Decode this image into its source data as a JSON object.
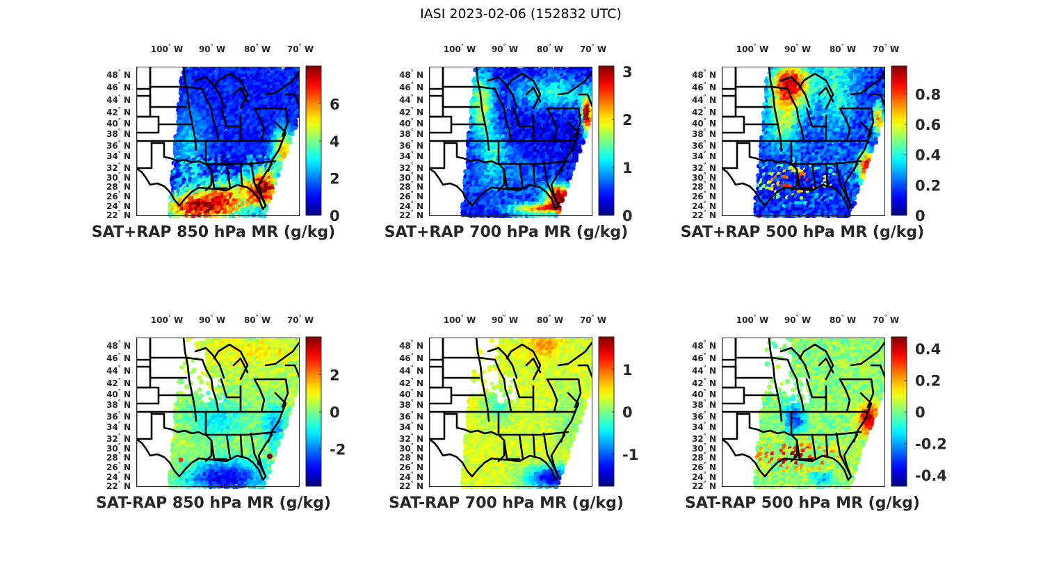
{
  "figure": {
    "title": "IASI 2023-02-06 (152832 UTC)"
  },
  "chart_data": [
    {
      "type": "heatmap",
      "title": "SAT+RAP 850 hPa MR (g/kg)",
      "field": "SAT+RAP",
      "pressure_hPa": 850,
      "colormap": "jet",
      "clim": [
        0,
        8
      ],
      "colorbar_ticks": [
        0,
        2,
        4,
        6
      ],
      "colorbar_tick_labels": [
        "0",
        "2",
        "4",
        "6"
      ],
      "lon_ticks": [
        "100° W",
        "90° W",
        "80° W",
        "70° W"
      ],
      "lat_ticks": [
        "48° N",
        "46° N",
        "44° N",
        "42° N",
        "40° N",
        "38° N",
        "36° N",
        "34° N",
        "32° N",
        "30° N",
        "28° N",
        "26° N",
        "24° N",
        "22° N"
      ],
      "pattern": "low (~1) over land and north, high (6–8) over Gulf of Mexico and Atlantic off Florida/Carolinas"
    },
    {
      "type": "heatmap",
      "title": "SAT+RAP 700 hPa MR (g/kg)",
      "field": "SAT+RAP",
      "pressure_hPa": 700,
      "colormap": "jet",
      "clim": [
        0,
        3.1
      ],
      "colorbar_ticks": [
        0,
        1,
        2,
        3
      ],
      "colorbar_tick_labels": [
        "0",
        "1",
        "2",
        "3"
      ],
      "lon_ticks": [
        "100° W",
        "90° W",
        "80° W",
        "70° W"
      ],
      "lat_ticks": [
        "48° N",
        "46° N",
        "44° N",
        "42° N",
        "40° N",
        "38° N",
        "36° N",
        "34° N",
        "32° N",
        "30° N",
        "28° N",
        "26° N",
        "24° N",
        "22° N"
      ],
      "pattern": "very low (~0.2) over interior, moderate (1.5–2) plains/northeast, high (3+) off SE Florida and mid-Atlantic coast strip"
    },
    {
      "type": "heatmap",
      "title": "SAT+RAP 500 hPa MR (g/kg)",
      "field": "SAT+RAP",
      "pressure_hPa": 500,
      "colormap": "jet",
      "clim": [
        0,
        0.98
      ],
      "colorbar_ticks": [
        0,
        0.2,
        0.4,
        0.6,
        0.8
      ],
      "colorbar_tick_labels": [
        "0",
        "0.2",
        "0.4",
        "0.6",
        "0.8"
      ],
      "lon_ticks": [
        "100° W",
        "90° W",
        "80° W",
        "70° W"
      ],
      "lat_ticks": [
        "48° N",
        "46° N",
        "44° N",
        "42° N",
        "40° N",
        "38° N",
        "36° N",
        "34° N",
        "32° N",
        "30° N",
        "28° N",
        "26° N",
        "24° N",
        "22° N"
      ],
      "pattern": "high (0.8–1) over upper Midwest/Minnesota and off Georgia coast, low (~0.1) over Ohio Valley and Southeast, streaks of high in Gulf"
    },
    {
      "type": "heatmap",
      "title": "SAT-RAP 850 hPa MR (g/kg)",
      "field": "SAT-RAP",
      "pressure_hPa": 850,
      "colormap": "jet",
      "clim": [
        -4,
        4
      ],
      "colorbar_ticks": [
        -2,
        0,
        2
      ],
      "colorbar_tick_labels": [
        "-2",
        "0",
        "2"
      ],
      "lon_ticks": [
        "100° W",
        "90° W",
        "80° W",
        "70° W"
      ],
      "lat_ticks": [
        "48° N",
        "46° N",
        "44° N",
        "42° N",
        "40° N",
        "38° N",
        "36° N",
        "34° N",
        "32° N",
        "30° N",
        "28° N",
        "26° N",
        "24° N",
        "22° N"
      ],
      "pattern": "near zero over most of the domain, strongly negative (-3 to -4) over Gulf of Mexico, isolated positive outliers near S Texas and off Florida"
    },
    {
      "type": "heatmap",
      "title": "SAT-RAP 700 hPa MR (g/kg)",
      "field": "SAT-RAP",
      "pressure_hPa": 700,
      "colormap": "jet",
      "clim": [
        -1.75,
        1.75
      ],
      "colorbar_ticks": [
        -1,
        0,
        1
      ],
      "colorbar_tick_labels": [
        "-1",
        "0",
        "1"
      ],
      "lon_ticks": [
        "100° W",
        "90° W",
        "80° W",
        "70° W"
      ],
      "lat_ticks": [
        "48° N",
        "46° N",
        "44° N",
        "42° N",
        "40° N",
        "38° N",
        "36° N",
        "34° N",
        "32° N",
        "30° N",
        "28° N",
        "26° N",
        "24° N",
        "22° N"
      ],
      "pattern": "near zero to slightly positive over most areas, positive (~1) over Lake Superior region, negative (-1.5) south of Florida"
    },
    {
      "type": "heatmap",
      "title": "SAT-RAP 500 hPa MR (g/kg)",
      "field": "SAT-RAP",
      "pressure_hPa": 500,
      "colormap": "jet",
      "clim": [
        -0.47,
        0.47
      ],
      "colorbar_ticks": [
        -0.4,
        -0.2,
        0,
        0.2,
        0.4
      ],
      "colorbar_tick_labels": [
        "-0.4",
        "-0.2",
        "0",
        "0.2",
        "0.4"
      ],
      "lon_ticks": [
        "100° W",
        "90° W",
        "80° W",
        "70° W"
      ],
      "lat_ticks": [
        "48° N",
        "46° N",
        "44° N",
        "42° N",
        "40° N",
        "38° N",
        "36° N",
        "34° N",
        "32° N",
        "30° N",
        "28° N",
        "26° N",
        "24° N",
        "22° N"
      ],
      "pattern": "near zero to slightly negative broadly, positive (0.4+) off Georgia coast and streaks in the Gulf, negative spots in Minnesota/Wisconsin"
    }
  ]
}
